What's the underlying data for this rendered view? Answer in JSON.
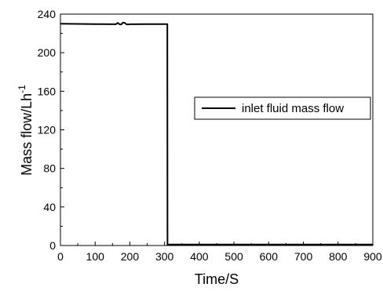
{
  "chart_data": {
    "type": "line",
    "xlabel": "Time/S",
    "ylabel": "Mass flow/Lh",
    "ylabel_superscript": "-1",
    "xlim": [
      0,
      900
    ],
    "ylim": [
      0,
      240
    ],
    "x_ticks": [
      0,
      100,
      200,
      300,
      400,
      500,
      600,
      700,
      800,
      900
    ],
    "y_ticks": [
      0,
      40,
      80,
      120,
      160,
      200,
      240
    ],
    "grid": false,
    "legend_position": "center-right",
    "series": [
      {
        "name": "inlet fluid mass flow",
        "color": "#000000",
        "x": [
          0,
          100,
          160,
          165,
          170,
          175,
          180,
          185,
          190,
          195,
          200,
          250,
          308,
          308.5,
          310,
          400,
          500,
          600,
          700,
          800,
          900
        ],
        "y": [
          230,
          229.7,
          229.5,
          231,
          229.5,
          229.2,
          231.2,
          231,
          229.5,
          229.3,
          229.5,
          229.6,
          229.6,
          1,
          1,
          1,
          1,
          1,
          1,
          1,
          1
        ]
      }
    ]
  }
}
